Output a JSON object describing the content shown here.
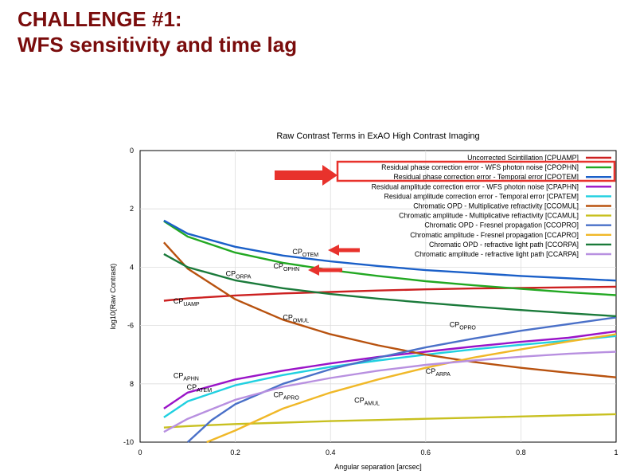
{
  "slide": {
    "title_line1": "CHALLENGE #1:",
    "title_line2": "WFS sensitivity and time lag"
  },
  "colors": {
    "title": "#7a0c0c",
    "highlight_box": "#e8322c",
    "arrow": "#e8322c"
  },
  "chart_data": {
    "type": "line",
    "title": "Raw Contrast Terms in ExAO High Contrast Imaging",
    "xlabel": "Angular separation [arcsec]",
    "ylabel": "log10(Raw Contrast)",
    "xlim": [
      0,
      1
    ],
    "ylim": [
      -10,
      0
    ],
    "xticks": [
      {
        "value": 0,
        "label": "0"
      },
      {
        "value": 0.2,
        "label": "0.2"
      },
      {
        "value": 0.4,
        "label": "0.4"
      },
      {
        "value": 0.6,
        "label": "0.6"
      },
      {
        "value": 0.8,
        "label": "0.8"
      },
      {
        "value": 1,
        "label": "1"
      }
    ],
    "yticks": [
      {
        "value": 0,
        "label": "0"
      },
      {
        "value": -2,
        "label": "2"
      },
      {
        "value": -4,
        "label": "4"
      },
      {
        "value": -6,
        "label": "-6"
      },
      {
        "value": -8,
        "label": "8"
      },
      {
        "value": -10,
        "label": "-10"
      }
    ],
    "grid": true,
    "legend_position": "top-right",
    "series": [
      {
        "name": "Uncorrected Scintillation [CPUAMP]",
        "color": "#cc2020",
        "x": [
          0.05,
          0.1,
          0.2,
          0.3,
          0.4,
          0.5,
          0.6,
          0.7,
          0.8,
          0.9,
          1.0
        ],
        "y": [
          -5.15,
          -5.07,
          -4.97,
          -4.9,
          -4.85,
          -4.8,
          -4.76,
          -4.73,
          -4.71,
          -4.69,
          -4.67
        ]
      },
      {
        "name": "Residual phase correction error - WFS photon noise [CPOPHN]",
        "color": "#22a822",
        "x": [
          0.05,
          0.1,
          0.2,
          0.3,
          0.4,
          0.5,
          0.6,
          0.7,
          0.8,
          0.9,
          1.0
        ],
        "y": [
          -2.42,
          -2.95,
          -3.5,
          -3.85,
          -4.1,
          -4.3,
          -4.48,
          -4.62,
          -4.74,
          -4.86,
          -4.96
        ]
      },
      {
        "name": "Residual phase correction error - Temporal error [CPOTEM]",
        "color": "#1a5fc8",
        "x": [
          0.05,
          0.1,
          0.2,
          0.3,
          0.4,
          0.5,
          0.6,
          0.7,
          0.8,
          0.9,
          1.0
        ],
        "y": [
          -2.4,
          -2.85,
          -3.3,
          -3.6,
          -3.8,
          -3.96,
          -4.1,
          -4.2,
          -4.3,
          -4.38,
          -4.46
        ]
      },
      {
        "name": "Residual amplitude correction error - WFS photon noise [CPAPHN]",
        "color": "#9a14c8",
        "x": [
          0.05,
          0.1,
          0.2,
          0.3,
          0.4,
          0.5,
          0.6,
          0.7,
          0.8,
          0.9,
          1.0
        ],
        "y": [
          -8.85,
          -8.3,
          -7.85,
          -7.55,
          -7.3,
          -7.08,
          -6.9,
          -6.72,
          -6.56,
          -6.42,
          -6.2
        ]
      },
      {
        "name": "Residual amplitude correction error - Temporal error [CPATEM]",
        "color": "#20d0e0",
        "x": [
          0.05,
          0.1,
          0.2,
          0.3,
          0.4,
          0.5,
          0.6,
          0.7,
          0.8,
          0.9,
          1.0
        ],
        "y": [
          -9.15,
          -8.6,
          -8.05,
          -7.7,
          -7.42,
          -7.2,
          -7.0,
          -6.82,
          -6.66,
          -6.52,
          -6.36
        ]
      },
      {
        "name": "Chromatic OPD - Multiplicative refractivity [CCOMUL]",
        "color": "#b8520f",
        "x": [
          0.05,
          0.1,
          0.2,
          0.3,
          0.4,
          0.5,
          0.6,
          0.7,
          0.8,
          0.9,
          1.0
        ],
        "y": [
          -3.15,
          -4.05,
          -5.1,
          -5.8,
          -6.3,
          -6.68,
          -7.0,
          -7.25,
          -7.45,
          -7.62,
          -7.78
        ]
      },
      {
        "name": "Chromatic amplitude - Multiplicative refractivity [CCAMUL]",
        "color": "#c8c020",
        "x": [
          0.05,
          0.1,
          0.2,
          0.3,
          0.4,
          0.5,
          0.6,
          0.7,
          0.8,
          0.9,
          1.0
        ],
        "y": [
          -9.5,
          -9.45,
          -9.38,
          -9.33,
          -9.28,
          -9.24,
          -9.2,
          -9.16,
          -9.12,
          -9.08,
          -9.04
        ]
      },
      {
        "name": "Chromatic OPD - Fresnel propagation [CCOPRO]",
        "color": "#4a70c8",
        "x": [
          0.1,
          0.15,
          0.2,
          0.3,
          0.4,
          0.5,
          0.6,
          0.7,
          0.8,
          0.9,
          1.0
        ],
        "y": [
          -10.0,
          -9.25,
          -8.7,
          -8.0,
          -7.5,
          -7.1,
          -6.75,
          -6.45,
          -6.18,
          -5.95,
          -5.72
        ]
      },
      {
        "name": "Chromatic amplitude - Fresnel propagation [CCAPRO]",
        "color": "#f0b828",
        "x": [
          0.14,
          0.2,
          0.3,
          0.4,
          0.5,
          0.6,
          0.7,
          0.8,
          0.9,
          1.0
        ],
        "y": [
          -10.0,
          -9.6,
          -8.85,
          -8.3,
          -7.85,
          -7.45,
          -7.1,
          -6.82,
          -6.55,
          -6.3
        ]
      },
      {
        "name": "Chromatic OPD - refractive light path [CCORPA]",
        "color": "#1a7a3a",
        "x": [
          0.05,
          0.1,
          0.2,
          0.3,
          0.4,
          0.5,
          0.6,
          0.7,
          0.8,
          0.9,
          1.0
        ],
        "y": [
          -3.55,
          -4.0,
          -4.45,
          -4.72,
          -4.92,
          -5.08,
          -5.22,
          -5.35,
          -5.47,
          -5.58,
          -5.68
        ]
      },
      {
        "name": "Chromatic amplitude - refractive light path [CCARPA]",
        "color": "#b890e0",
        "x": [
          0.05,
          0.1,
          0.2,
          0.3,
          0.4,
          0.5,
          0.6,
          0.7,
          0.8,
          0.9,
          1.0
        ],
        "y": [
          -9.65,
          -9.2,
          -8.55,
          -8.1,
          -7.8,
          -7.55,
          -7.35,
          -7.2,
          -7.07,
          -6.97,
          -6.9
        ]
      }
    ],
    "annotations": [
      {
        "text": "CPOTEM",
        "main": "CP",
        "sub": "OTEM",
        "x": 0.32,
        "y": -3.55
      },
      {
        "text": "CPOPHN",
        "main": "CP",
        "sub": "OPHN",
        "x": 0.28,
        "y": -4.05
      },
      {
        "text": "CPORPA",
        "main": "CP",
        "sub": "ORPA",
        "x": 0.18,
        "y": -4.3
      },
      {
        "text": "CPUAMP",
        "main": "CP",
        "sub": "UAMP",
        "x": 0.07,
        "y": -5.25
      },
      {
        "text": "CPOMUL",
        "main": "CP",
        "sub": "OMUL",
        "x": 0.3,
        "y": -5.8
      },
      {
        "text": "CPOPRO",
        "main": "CP",
        "sub": "OPRO",
        "x": 0.65,
        "y": -6.05
      },
      {
        "text": "CPARPA",
        "main": "CP",
        "sub": "ARPA",
        "x": 0.6,
        "y": -7.65
      },
      {
        "text": "CPAPHN",
        "main": "CP",
        "sub": "APHN",
        "x": 0.07,
        "y": -7.8
      },
      {
        "text": "CPATEM",
        "main": "CP",
        "sub": "ATEM",
        "x": 0.098,
        "y": -8.2
      },
      {
        "text": "CPAPRO",
        "main": "CP",
        "sub": "APRO",
        "x": 0.28,
        "y": -8.45
      },
      {
        "text": "CPAMUL",
        "main": "CP",
        "sub": "AMUL",
        "x": 0.45,
        "y": -8.65
      }
    ],
    "highlighted_legend_entries": [
      1,
      2
    ],
    "pointer_arrows": [
      {
        "target": "legend",
        "entry": 1
      },
      {
        "target": "annotation",
        "label": "CPOTEM"
      },
      {
        "target": "annotation",
        "label": "CPOPHN"
      }
    ]
  }
}
